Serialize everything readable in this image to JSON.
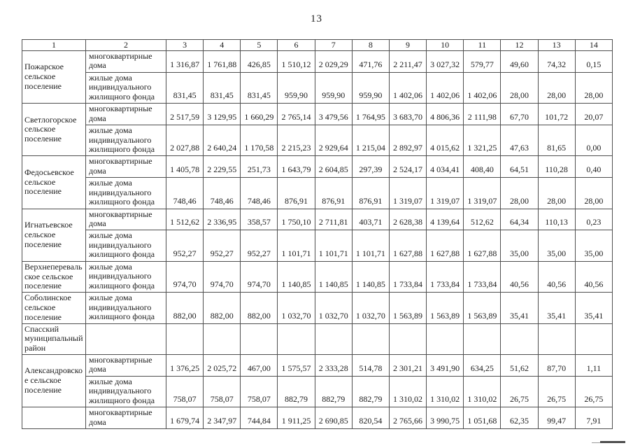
{
  "page_number": "13",
  "table": {
    "column_headers": [
      "1",
      "2",
      "3",
      "4",
      "5",
      "6",
      "7",
      "8",
      "9",
      "10",
      "11",
      "12",
      "13",
      "14"
    ],
    "housing_type_labels": {
      "apartment": "многоквартирные дома",
      "individual": "жилые дома индивидуального жилищного фонда"
    },
    "sections": [
      {
        "name": "Пожарское сельское поселение",
        "rows": [
          {
            "type": "многоквартирные дома",
            "values": [
              "1 316,87",
              "1 761,88",
              "426,85",
              "1 510,12",
              "2 029,29",
              "471,76",
              "2 211,47",
              "3 027,32",
              "579,77",
              "49,60",
              "74,32",
              "0,15"
            ]
          },
          {
            "type": "жилые дома индивидуального жилищного фонда",
            "values": [
              "831,45",
              "831,45",
              "831,45",
              "959,90",
              "959,90",
              "959,90",
              "1 402,06",
              "1 402,06",
              "1 402,06",
              "28,00",
              "28,00",
              "28,00"
            ]
          }
        ]
      },
      {
        "name": "Светлогорское сельское поселение",
        "rows": [
          {
            "type": "многоквартирные дома",
            "values": [
              "2 517,59",
              "3 129,95",
              "1 660,29",
              "2 765,14",
              "3 479,56",
              "1 764,95",
              "3 683,70",
              "4 806,36",
              "2 111,98",
              "67,70",
              "101,72",
              "20,07"
            ]
          },
          {
            "type": "жилые дома индивидуального жилищного фонда",
            "values": [
              "2 027,88",
              "2 640,24",
              "1 170,58",
              "2 215,23",
              "2 929,64",
              "1 215,04",
              "2 892,97",
              "4 015,62",
              "1 321,25",
              "47,63",
              "81,65",
              "0,00"
            ]
          }
        ]
      },
      {
        "name": "Федосьевское сельское поселение",
        "rows": [
          {
            "type": "многоквартирные дома",
            "values": [
              "1 405,78",
              "2 229,55",
              "251,73",
              "1 643,79",
              "2 604,85",
              "297,39",
              "2 524,17",
              "4 034,41",
              "408,40",
              "64,51",
              "110,28",
              "0,40"
            ]
          },
          {
            "type": "жилые дома индивидуального жилищного фонда",
            "values": [
              "748,46",
              "748,46",
              "748,46",
              "876,91",
              "876,91",
              "876,91",
              "1 319,07",
              "1 319,07",
              "1 319,07",
              "28,00",
              "28,00",
              "28,00"
            ]
          }
        ]
      },
      {
        "name": "Игнатьевское сельское поселение",
        "rows": [
          {
            "type": "многоквартирные дома",
            "values": [
              "1 512,62",
              "2 336,95",
              "358,57",
              "1 750,10",
              "2 711,81",
              "403,71",
              "2 628,38",
              "4 139,64",
              "512,62",
              "64,34",
              "110,13",
              "0,23"
            ]
          },
          {
            "type": "жилые дома индивидуального жилищного фонда",
            "values": [
              "952,27",
              "952,27",
              "952,27",
              "1 101,71",
              "1 101,71",
              "1 101,71",
              "1 627,88",
              "1 627,88",
              "1 627,88",
              "35,00",
              "35,00",
              "35,00"
            ]
          }
        ]
      },
      {
        "name": "Верхнеперевальское сельское поселение",
        "rows": [
          {
            "type": "жилые дома индивидуального жилищного фонда",
            "values": [
              "974,70",
              "974,70",
              "974,70",
              "1 140,85",
              "1 140,85",
              "1 140,85",
              "1 733,84",
              "1 733,84",
              "1 733,84",
              "40,56",
              "40,56",
              "40,56"
            ]
          }
        ]
      },
      {
        "name": "Соболинское сельское поселение",
        "rows": [
          {
            "type": "жилые дома индивидуального жилищного фонда",
            "values": [
              "882,00",
              "882,00",
              "882,00",
              "1 032,70",
              "1 032,70",
              "1 032,70",
              "1 563,89",
              "1 563,89",
              "1 563,89",
              "35,41",
              "35,41",
              "35,41"
            ]
          }
        ]
      },
      {
        "name": "Спасский муниципальный район",
        "rows": [
          {
            "type": "",
            "values": [
              "",
              "",
              "",
              "",
              "",
              "",
              "",
              "",
              "",
              "",
              "",
              ""
            ]
          }
        ]
      },
      {
        "name": "Александровское сельское поселение",
        "rows": [
          {
            "type": "многоквартирные дома",
            "values": [
              "1 376,25",
              "2 025,72",
              "467,00",
              "1 575,57",
              "2 333,28",
              "514,78",
              "2 301,21",
              "3 491,90",
              "634,25",
              "51,62",
              "87,70",
              "1,11"
            ]
          },
          {
            "type": "жилые дома индивидуального жилищного фонда",
            "values": [
              "758,07",
              "758,07",
              "758,07",
              "882,79",
              "882,79",
              "882,79",
              "1 310,02",
              "1 310,02",
              "1 310,02",
              "26,75",
              "26,75",
              "26,75"
            ]
          }
        ]
      },
      {
        "name": "",
        "rows": [
          {
            "type": "многоквартирные дома",
            "values": [
              "1 679,74",
              "2 347,97",
              "744,84",
              "1 911,25",
              "2 690,85",
              "820,54",
              "2 765,66",
              "3 990,75",
              "1 051,68",
              "62,35",
              "99,47",
              "7,91"
            ]
          }
        ]
      }
    ]
  }
}
